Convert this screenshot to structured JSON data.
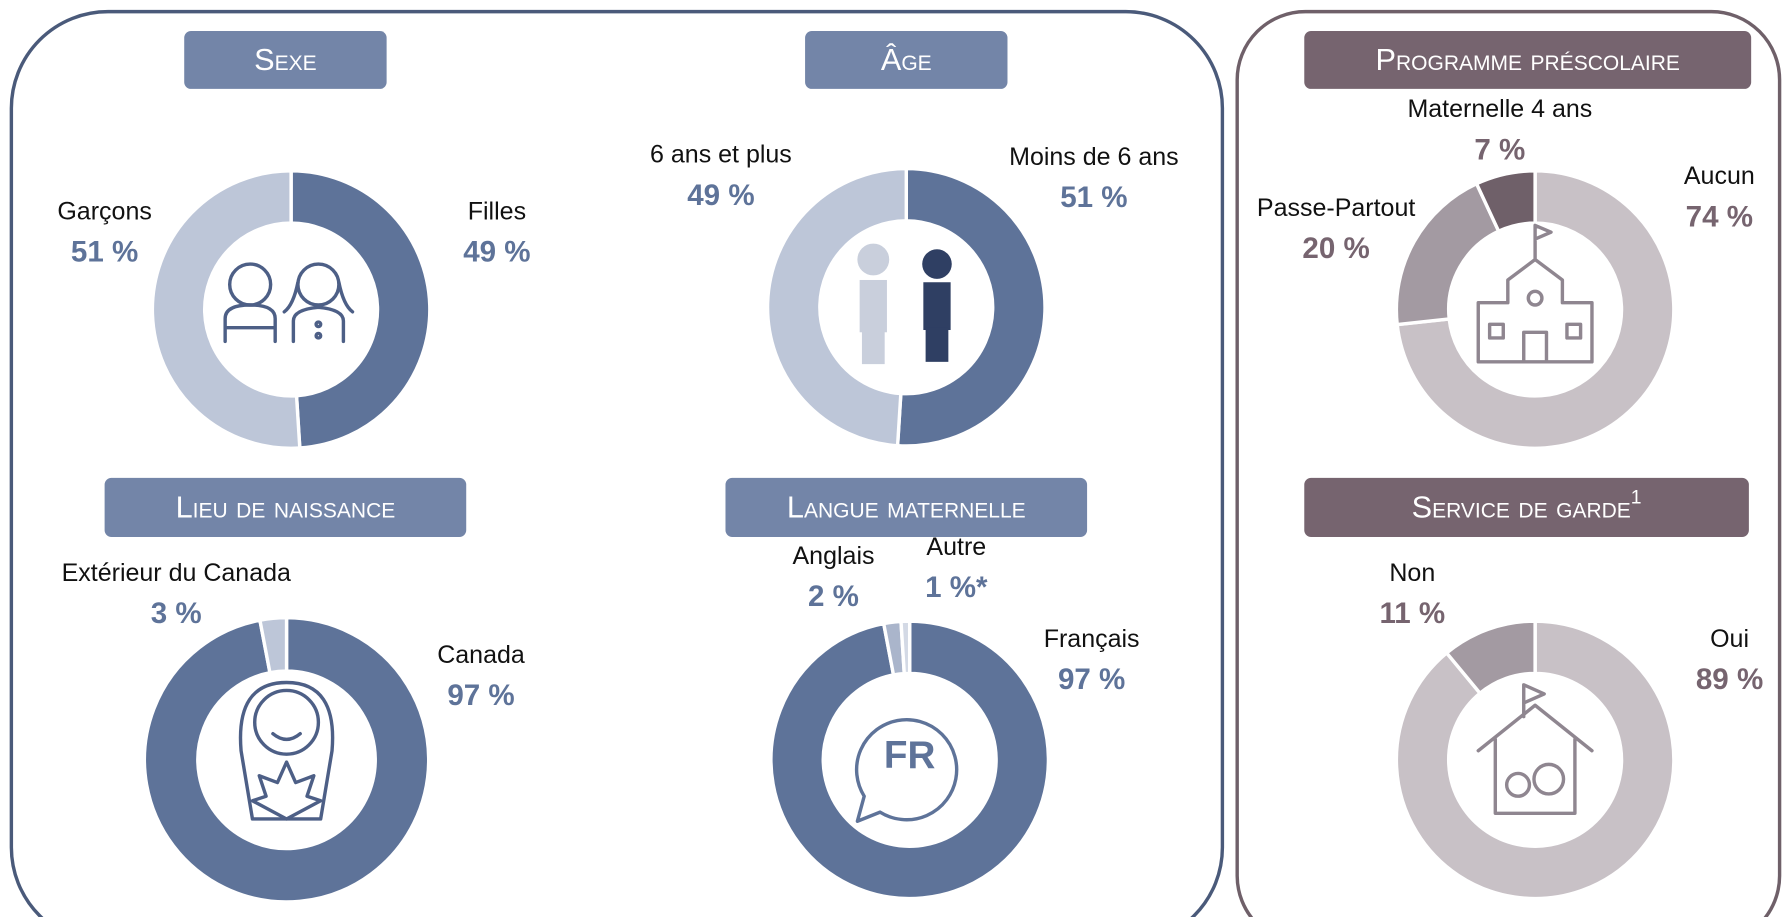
{
  "chart_data": [
    {
      "type": "donut",
      "title": "Sexe",
      "categories": [
        "Filles",
        "Garçons"
      ],
      "values": [
        49,
        51
      ],
      "value_labels": [
        "49 %",
        "51 %"
      ],
      "colors": [
        "#5e7399",
        "#bdc6d8"
      ]
    },
    {
      "type": "donut",
      "title": "Âge",
      "categories": [
        "Moins de 6 ans",
        "6 ans et plus"
      ],
      "values": [
        51,
        49
      ],
      "value_labels": [
        "51 %",
        "49 %"
      ],
      "colors": [
        "#5e7399",
        "#bdc6d8"
      ]
    },
    {
      "type": "donut",
      "title": "Lieu de naissance",
      "categories": [
        "Canada",
        "Extérieur du Canada"
      ],
      "values": [
        97,
        3
      ],
      "value_labels": [
        "97 %",
        "3 %"
      ],
      "colors": [
        "#5e7399",
        "#bdc6d8"
      ]
    },
    {
      "type": "donut",
      "title": "Langue maternelle",
      "categories": [
        "Français",
        "Anglais",
        "Autre"
      ],
      "values": [
        97,
        2,
        1
      ],
      "value_labels": [
        "97 %",
        "2 %",
        "1 %*"
      ],
      "colors": [
        "#5e7399",
        "#aab5cb",
        "#d3d9e5"
      ]
    },
    {
      "type": "donut",
      "title": "Programme préscolaire",
      "categories": [
        "Aucun",
        "Passe-Partout",
        "Maternelle 4 ans"
      ],
      "values": [
        74,
        20,
        7
      ],
      "value_labels": [
        "74 %",
        "20 %",
        "7 %"
      ],
      "colors": [
        "#c8c1c6",
        "#a39aa2",
        "#6f6069"
      ]
    },
    {
      "type": "donut",
      "title": "Service de garde",
      "footnote_mark": "1",
      "categories": [
        "Oui",
        "Non"
      ],
      "values": [
        89,
        11
      ],
      "value_labels": [
        "89 %",
        "11 %"
      ],
      "colors": [
        "#c8c1c6",
        "#a39aa2"
      ]
    }
  ]
}
